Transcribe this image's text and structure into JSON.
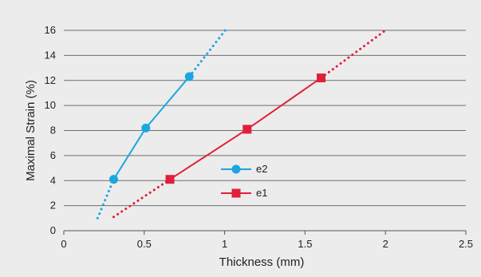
{
  "chart_data": {
    "type": "line",
    "title": "",
    "xlabel": "Thickness (mm)",
    "ylabel": "Maximal Strain (%)",
    "xlim": [
      0,
      2.5
    ],
    "ylim": [
      0,
      16
    ],
    "x_ticks": [
      "0",
      "0.5",
      "1",
      "1.5",
      "2",
      "2.5"
    ],
    "y_ticks": [
      "0",
      "2",
      "4",
      "6",
      "8",
      "10",
      "12",
      "14",
      "16"
    ],
    "x_tick_values": [
      0,
      0.5,
      1,
      1.5,
      2,
      2.5
    ],
    "y_tick_values": [
      0,
      2,
      4,
      6,
      8,
      10,
      12,
      14,
      16
    ],
    "grid": "horizontal",
    "legend_position": "center",
    "series": [
      {
        "name": "e2",
        "color": "#1aa7e0",
        "marker": "circle",
        "points": [
          {
            "x": 0.31,
            "y": 4.1
          },
          {
            "x": 0.51,
            "y": 8.2
          },
          {
            "x": 0.78,
            "y": 12.3
          }
        ],
        "trend_low": [
          {
            "x": 0.21,
            "y": 1.0
          },
          {
            "x": 0.31,
            "y": 4.1
          }
        ],
        "trend_high": [
          {
            "x": 0.78,
            "y": 12.3
          },
          {
            "x": 1.01,
            "y": 16.1
          }
        ]
      },
      {
        "name": "e1",
        "color": "#e0203a",
        "marker": "square",
        "points": [
          {
            "x": 0.66,
            "y": 4.1
          },
          {
            "x": 1.14,
            "y": 8.1
          },
          {
            "x": 1.6,
            "y": 12.2
          }
        ],
        "trend_low": [
          {
            "x": 0.31,
            "y": 1.1
          },
          {
            "x": 0.66,
            "y": 4.1
          }
        ],
        "trend_high": [
          {
            "x": 1.6,
            "y": 12.2
          },
          {
            "x": 2.0,
            "y": 16.0
          }
        ]
      }
    ]
  }
}
